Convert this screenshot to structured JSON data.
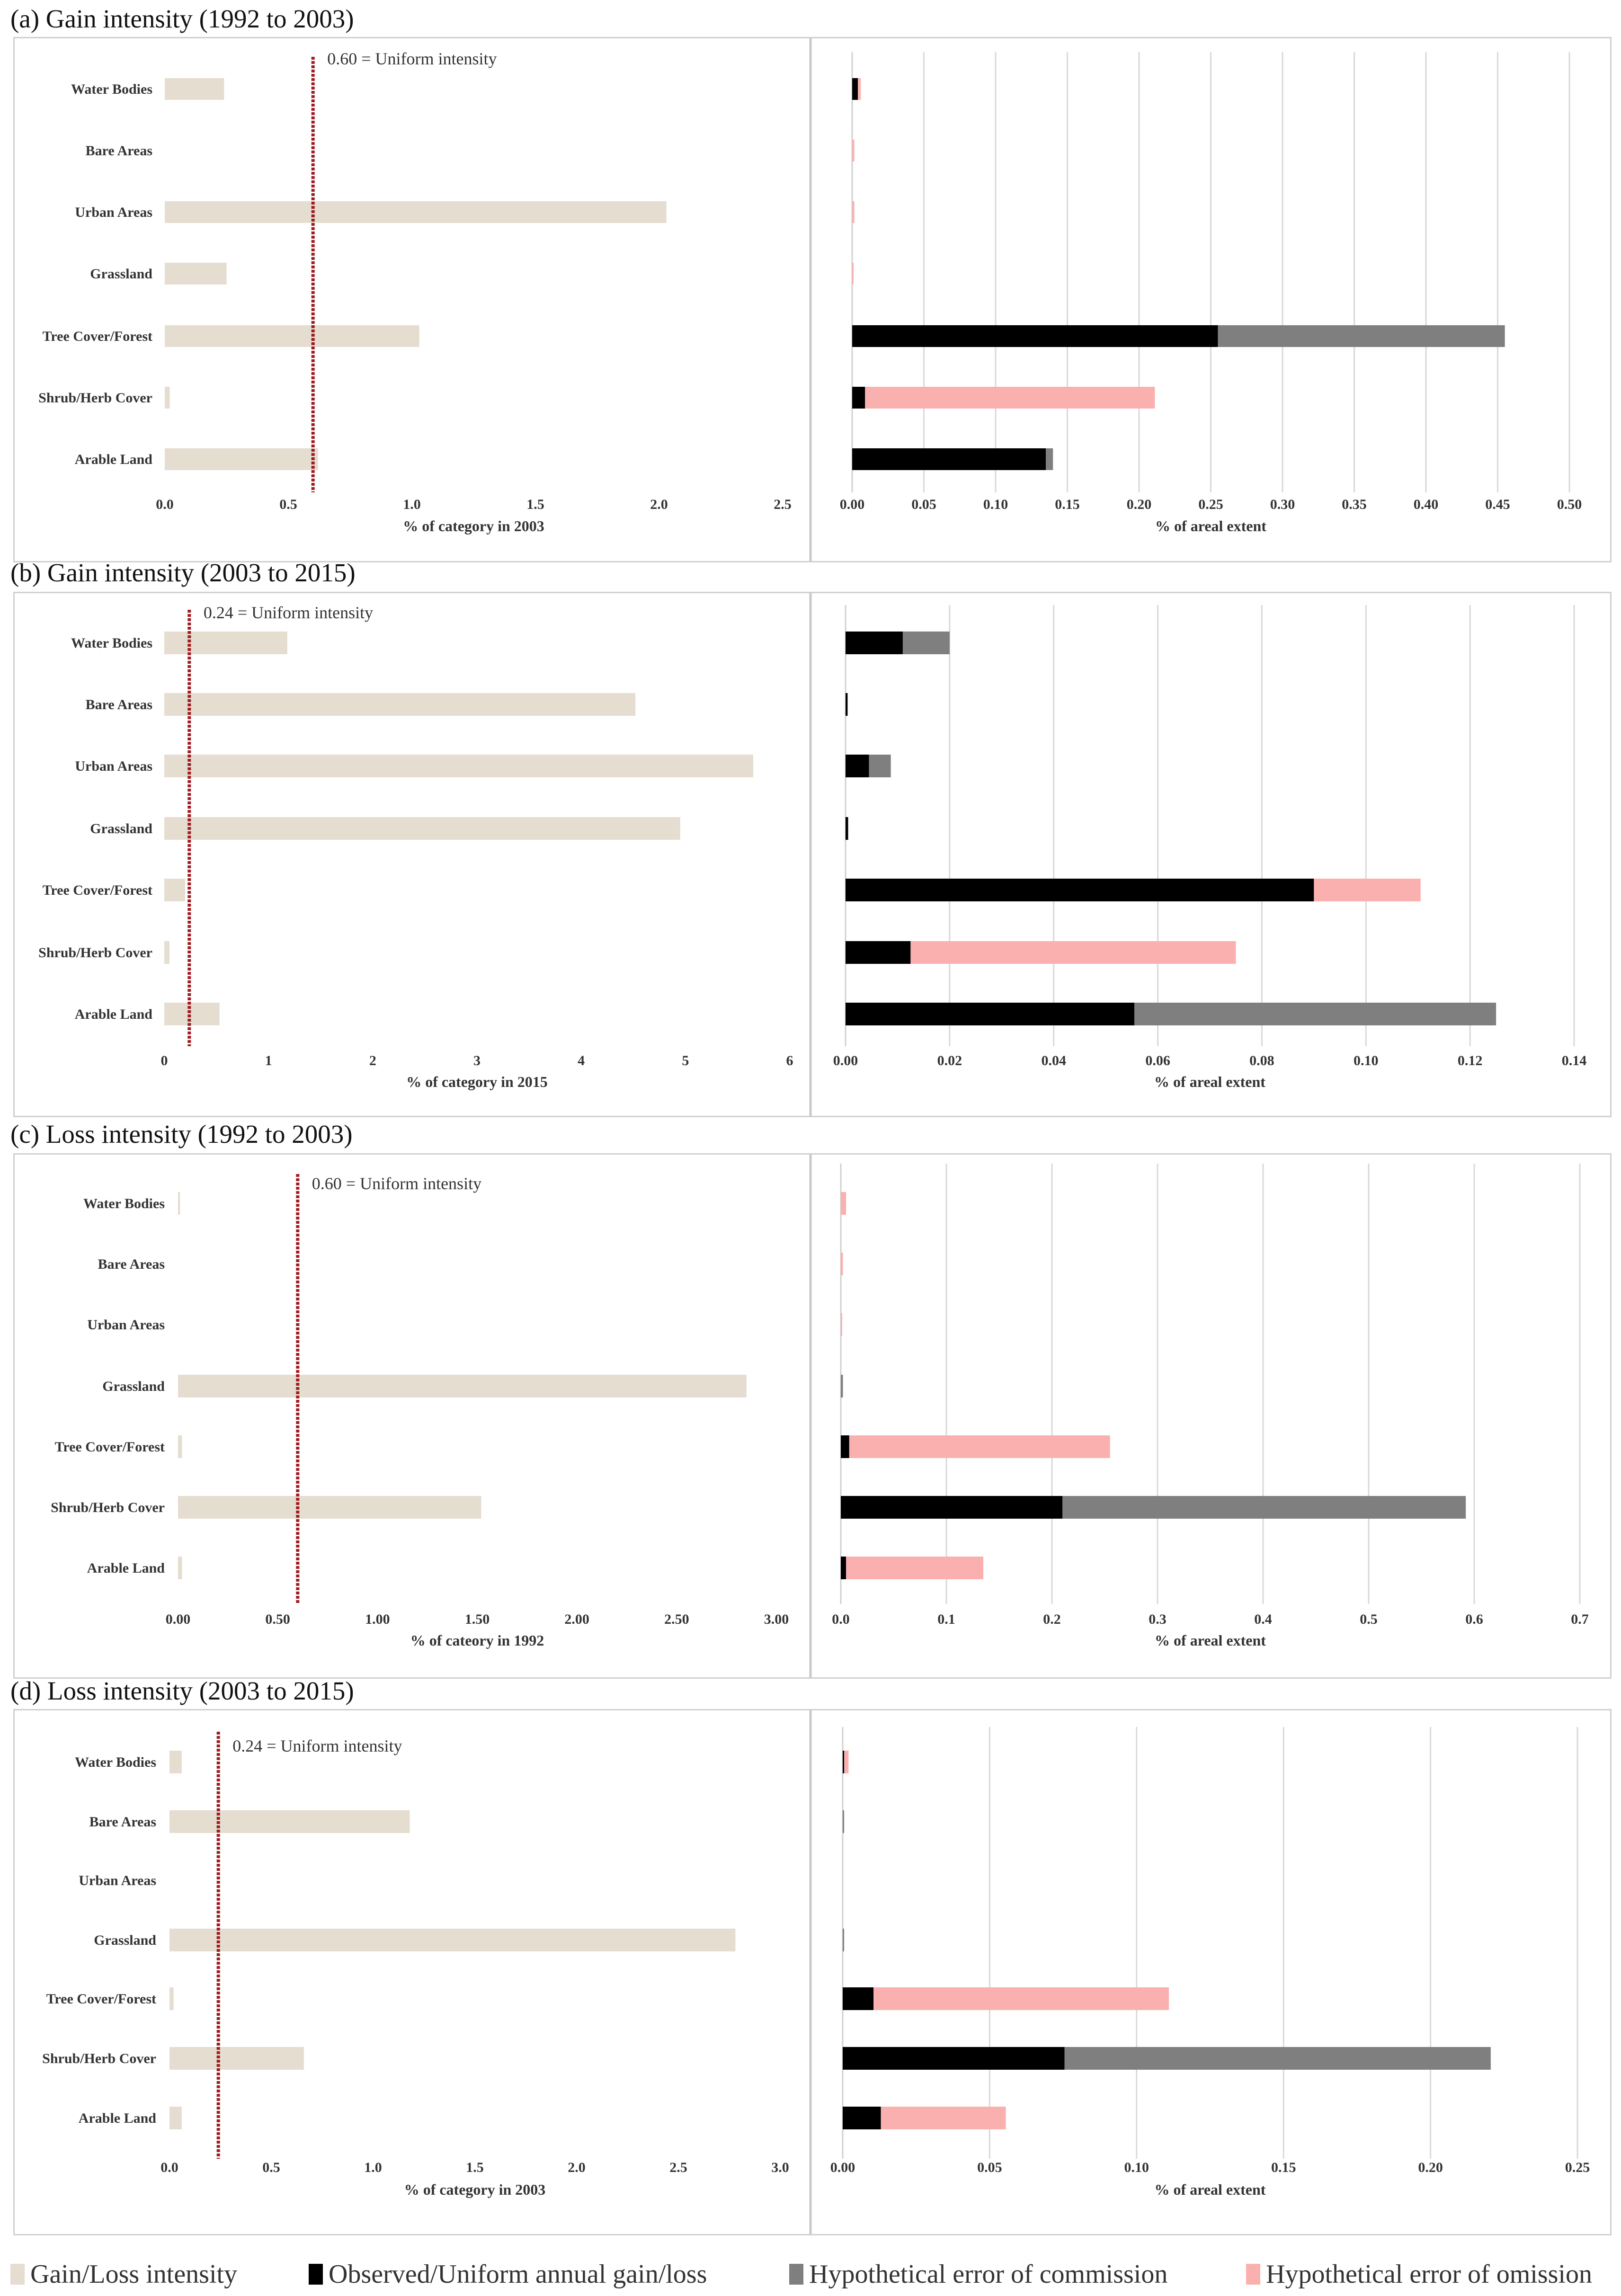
{
  "colors": {
    "intensity": "#e4ddd0",
    "observed": "#000000",
    "commission": "#7f7f7f",
    "omission": "#fbb0b0",
    "uniform_line": "#a01c22",
    "grid": "#d9d9d9"
  },
  "legend": {
    "intensity": "Gain/Loss intensity",
    "observed": "Observed/Uniform annual gain/loss",
    "commission": "Hypothetical error of commission",
    "omission": "Hypothetical error of omission"
  },
  "chart_data": [
    {
      "id": "a",
      "title": "(a) Gain intensity (1992 to 2003)",
      "categories": [
        "Water Bodies",
        "Bare Areas",
        "Urban Areas",
        "Grassland",
        "Tree Cover/Forest",
        "Shrub/Herb Cover",
        "Arable Land"
      ],
      "left": {
        "type": "bar",
        "values": [
          0.24,
          0,
          2.03,
          0.25,
          1.03,
          0.02,
          0.62
        ],
        "uniform": 0.6,
        "uniform_label": "0.60 = Uniform intensity",
        "xlim": [
          0,
          2.5
        ],
        "ticks": [
          "0.0",
          "0.5",
          "1.0",
          "1.5",
          "2.0",
          "2.5"
        ],
        "xlabel": "% of category in 2003"
      },
      "right": {
        "type": "bar",
        "series": [
          {
            "name": "Observed/Uniform annual gain/loss",
            "values": [
              0.004,
              0,
              0,
              0,
              0.255,
              0.009,
              0.135
            ]
          },
          {
            "name": "Hypothetical error of commission",
            "values": [
              0,
              0,
              0,
              0,
              0.2,
              0,
              0.005
            ]
          },
          {
            "name": "Hypothetical error of omission",
            "values": [
              0.002,
              0.0015,
              0.0015,
              0.001,
              0,
              0.202,
              0
            ]
          }
        ],
        "xlim": [
          0,
          0.5
        ],
        "ticks": [
          "0.00",
          "0.05",
          "0.10",
          "0.15",
          "0.20",
          "0.25",
          "0.30",
          "0.35",
          "0.40",
          "0.45",
          "0.50"
        ],
        "xlabel": "% of areal extent"
      }
    },
    {
      "id": "b",
      "title": "(b) Gain intensity (2003 to 2015)",
      "categories": [
        "Water Bodies",
        "Bare Areas",
        "Urban Areas",
        "Grassland",
        "Tree Cover/Forest",
        "Shrub/Herb Cover",
        "Arable Land"
      ],
      "left": {
        "type": "bar",
        "values": [
          1.18,
          4.52,
          5.65,
          4.95,
          0.2,
          0.05,
          0.53
        ],
        "uniform": 0.24,
        "uniform_label": "0.24 = Uniform intensity",
        "xlim": [
          0,
          6
        ],
        "ticks": [
          "0",
          "1",
          "2",
          "3",
          "4",
          "5",
          "6"
        ],
        "xlabel": "% of category in 2015"
      },
      "right": {
        "type": "bar",
        "series": [
          {
            "name": "Observed/Uniform annual gain/loss",
            "values": [
              0.011,
              0.0004,
              0.0045,
              0.0005,
              0.09,
              0.0125,
              0.0555
            ]
          },
          {
            "name": "Hypothetical error of commission",
            "values": [
              0.009,
              0,
              0.0042,
              0,
              0,
              0,
              0.0695
            ]
          },
          {
            "name": "Hypothetical error of omission",
            "values": [
              0,
              0,
              0,
              0,
              0.0205,
              0.0625,
              0
            ]
          }
        ],
        "xlim": [
          0,
          0.14
        ],
        "ticks": [
          "0.00",
          "0.02",
          "0.04",
          "0.06",
          "0.08",
          "0.10",
          "0.12",
          "0.14"
        ],
        "xlabel": "% of areal extent"
      }
    },
    {
      "id": "c",
      "title": "(c) Loss intensity (1992 to 2003)",
      "categories": [
        "Water Bodies",
        "Bare Areas",
        "Urban Areas",
        "Grassland",
        "Tree Cover/Forest",
        "Shrub/Herb Cover",
        "Arable Land"
      ],
      "left": {
        "type": "bar",
        "values": [
          0.01,
          0,
          0,
          2.85,
          0.02,
          1.52,
          0.02
        ],
        "uniform": 0.6,
        "uniform_label": "0.60 = Uniform intensity",
        "xlim": [
          0,
          3
        ],
        "ticks": [
          "0.00",
          "0.50",
          "1.00",
          "1.50",
          "2.00",
          "2.50",
          "3.00"
        ],
        "xlabel": "% of cateory in 1992"
      },
      "right": {
        "type": "bar",
        "series": [
          {
            "name": "Observed/Uniform annual gain/loss",
            "values": [
              0,
              0,
              0,
              0,
              0.008,
              0.21,
              0.005
            ]
          },
          {
            "name": "Hypothetical error of commission",
            "values": [
              0,
              0,
              0,
              0.002,
              0,
              0.382,
              0
            ]
          },
          {
            "name": "Hypothetical error of omission",
            "values": [
              0.005,
              0.002,
              0.001,
              0,
              0.247,
              0,
              0.13
            ]
          }
        ],
        "xlim": [
          0,
          0.7
        ],
        "ticks": [
          "0.0",
          "0.1",
          "0.2",
          "0.3",
          "0.4",
          "0.5",
          "0.6",
          "0.7"
        ],
        "xlabel": "% of areal extent"
      }
    },
    {
      "id": "d",
      "title": "(d) Loss intensity (2003 to 2015)",
      "categories": [
        "Water Bodies",
        "Bare Areas",
        "Urban Areas",
        "Grassland",
        "Tree Cover/Forest",
        "Shrub/Herb Cover",
        "Arable Land"
      ],
      "left": {
        "type": "bar",
        "values": [
          0.06,
          1.18,
          0,
          2.78,
          0.02,
          0.66,
          0.06
        ],
        "uniform": 0.24,
        "uniform_label": "0.24 = Uniform intensity",
        "xlim": [
          0,
          3
        ],
        "ticks": [
          "0.0",
          "0.5",
          "1.0",
          "1.5",
          "2.0",
          "2.5",
          "3.0"
        ],
        "xlabel": "% of category in 2003"
      },
      "right": {
        "type": "bar",
        "series": [
          {
            "name": "Observed/Uniform annual gain/loss",
            "values": [
              0.0005,
              0,
              0,
              0,
              0.0105,
              0.0755,
              0.013
            ]
          },
          {
            "name": "Hypothetical error of commission",
            "values": [
              0,
              0.0003,
              0,
              0.0003,
              0,
              0.145,
              0
            ]
          },
          {
            "name": "Hypothetical error of omission",
            "values": [
              0.0015,
              0,
              0,
              0,
              0.1005,
              0,
              0.0425
            ]
          }
        ],
        "xlim": [
          0,
          0.25
        ],
        "ticks": [
          "0.00",
          "0.05",
          "0.10",
          "0.15",
          "0.20",
          "0.25"
        ],
        "xlabel": "% of areal extent"
      }
    }
  ]
}
